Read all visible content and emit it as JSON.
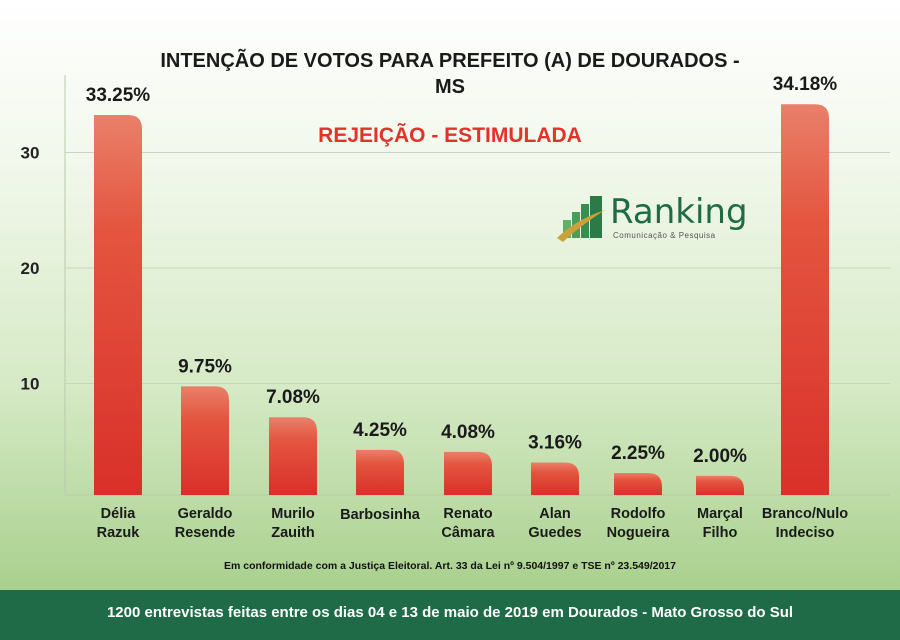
{
  "chart_data": {
    "type": "bar",
    "title": "INTENÇÃO DE VOTOS PARA PREFEITO (A) DE DOURADOS - MS",
    "subtitle": "REJEIÇÃO - ESTIMULADA",
    "categories": [
      [
        "Délia",
        "Razuk"
      ],
      [
        "Geraldo",
        "Resende"
      ],
      [
        "Murilo",
        "Zauith"
      ],
      [
        "Barbosinha"
      ],
      [
        "Renato",
        "Câmara"
      ],
      [
        "Alan",
        "Guedes"
      ],
      [
        "Rodolfo",
        "Nogueira"
      ],
      [
        "Marçal",
        "Filho"
      ],
      [
        "Branco/Nulo",
        "Indeciso"
      ]
    ],
    "values": [
      33.25,
      9.75,
      7.08,
      4.25,
      4.08,
      3.16,
      2.25,
      2.0,
      34.18
    ],
    "data_labels": [
      "33.25%",
      "9.75%",
      "7.08%",
      "4.25%",
      "4.08%",
      "3.16%",
      "2.25%",
      "2.00%",
      "34.18%"
    ],
    "yticks": [
      "10",
      "20",
      "30"
    ],
    "ytick_values": [
      10,
      20,
      30
    ],
    "ylim": [
      0,
      36
    ],
    "grid": true,
    "bar_color": "#e0392e"
  },
  "logo": {
    "name": "Ranking",
    "tagline": "Comunicação & Pesquisa"
  },
  "note": "Em conformidade com a Justiça Eleitoral. Art. 33 da Lei nº 9.504/1997 e TSE nº 23.549/2017",
  "footer": "1200 entrevistas feitas entre os dias 04 e 13 de maio de 2019 em Dourados - Mato Grosso do Sul",
  "colors": {
    "footer_bg": "#1f6b47",
    "subtitle": "#e0332b",
    "brand": "#1e6b46"
  }
}
